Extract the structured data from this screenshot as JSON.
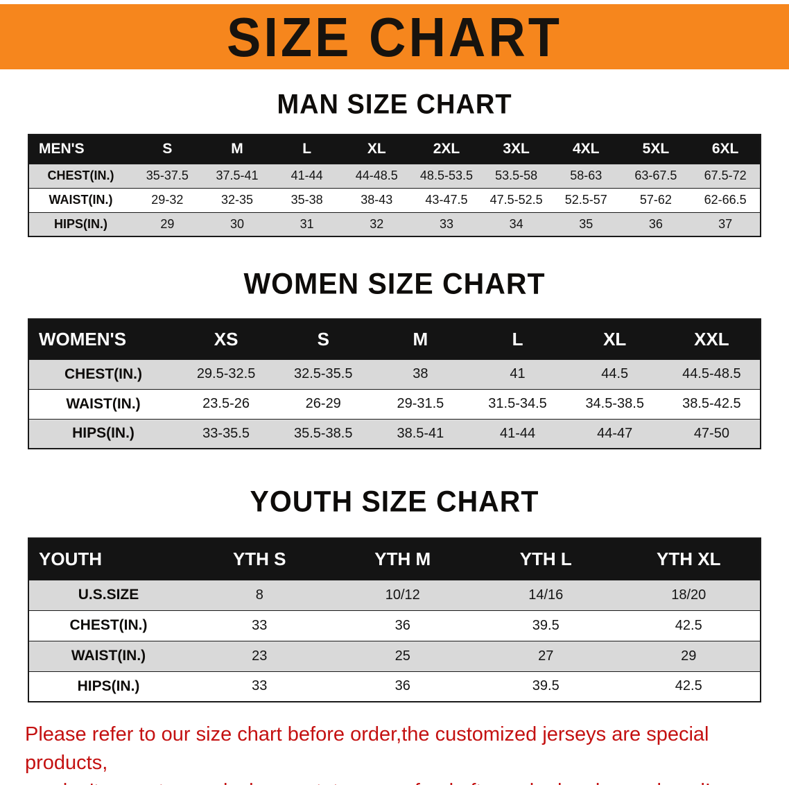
{
  "banner": {
    "title": "SIZE CHART"
  },
  "sections": [
    {
      "heading": "MAN SIZE CHART",
      "table": {
        "header": [
          "MEN'S",
          "S",
          "M",
          "L",
          "XL",
          "2XL",
          "3XL",
          "4XL",
          "5XL",
          "6XL"
        ],
        "rows": [
          {
            "label": "CHEST(IN.)",
            "values": [
              "35-37.5",
              "37.5-41",
              "41-44",
              "44-48.5",
              "48.5-53.5",
              "53.5-58",
              "58-63",
              "63-67.5",
              "67.5-72"
            ]
          },
          {
            "label": "WAIST(IN.)",
            "values": [
              "29-32",
              "32-35",
              "35-38",
              "38-43",
              "43-47.5",
              "47.5-52.5",
              "52.5-57",
              "57-62",
              "62-66.5"
            ]
          },
          {
            "label": "HIPS(IN.)",
            "values": [
              "29",
              "30",
              "31",
              "32",
              "33",
              "34",
              "35",
              "36",
              "37"
            ]
          }
        ]
      }
    },
    {
      "heading": "WOMEN SIZE CHART",
      "table": {
        "header": [
          "WOMEN'S",
          "XS",
          "S",
          "M",
          "L",
          "XL",
          "XXL"
        ],
        "rows": [
          {
            "label": "CHEST(IN.)",
            "values": [
              "29.5-32.5",
              "32.5-35.5",
              "38",
              "41",
              "44.5",
              "44.5-48.5"
            ]
          },
          {
            "label": "WAIST(IN.)",
            "values": [
              "23.5-26",
              "26-29",
              "29-31.5",
              "31.5-34.5",
              "34.5-38.5",
              "38.5-42.5"
            ]
          },
          {
            "label": "HIPS(IN.)",
            "values": [
              "33-35.5",
              "35.5-38.5",
              "38.5-41",
              "41-44",
              "44-47",
              "47-50"
            ]
          }
        ]
      }
    },
    {
      "heading": "YOUTH SIZE CHART",
      "table": {
        "header": [
          "YOUTH",
          "YTH S",
          "YTH M",
          "YTH L",
          "YTH XL"
        ],
        "rows": [
          {
            "label": "U.S.SIZE",
            "values": [
              "8",
              "10/12",
              "14/16",
              "18/20"
            ]
          },
          {
            "label": "CHEST(IN.)",
            "values": [
              "33",
              "36",
              "39.5",
              "42.5"
            ]
          },
          {
            "label": "WAIST(IN.)",
            "values": [
              "23",
              "25",
              "27",
              "29"
            ]
          },
          {
            "label": "HIPS(IN.)",
            "values": [
              "33",
              "36",
              "39.5",
              "42.5"
            ]
          }
        ]
      }
    }
  ],
  "footer": {
    "line1": "Please refer to our size chart before order,the customized jerseys are special products,",
    "line2": "we don't accept cancel, change, teturn or refund after order has been placed!"
  },
  "colors": {
    "banner_bg": "#f6861d",
    "table_header_bg": "#141414",
    "row_stripe": "#d9d9d9",
    "notice_text": "#c41111"
  }
}
